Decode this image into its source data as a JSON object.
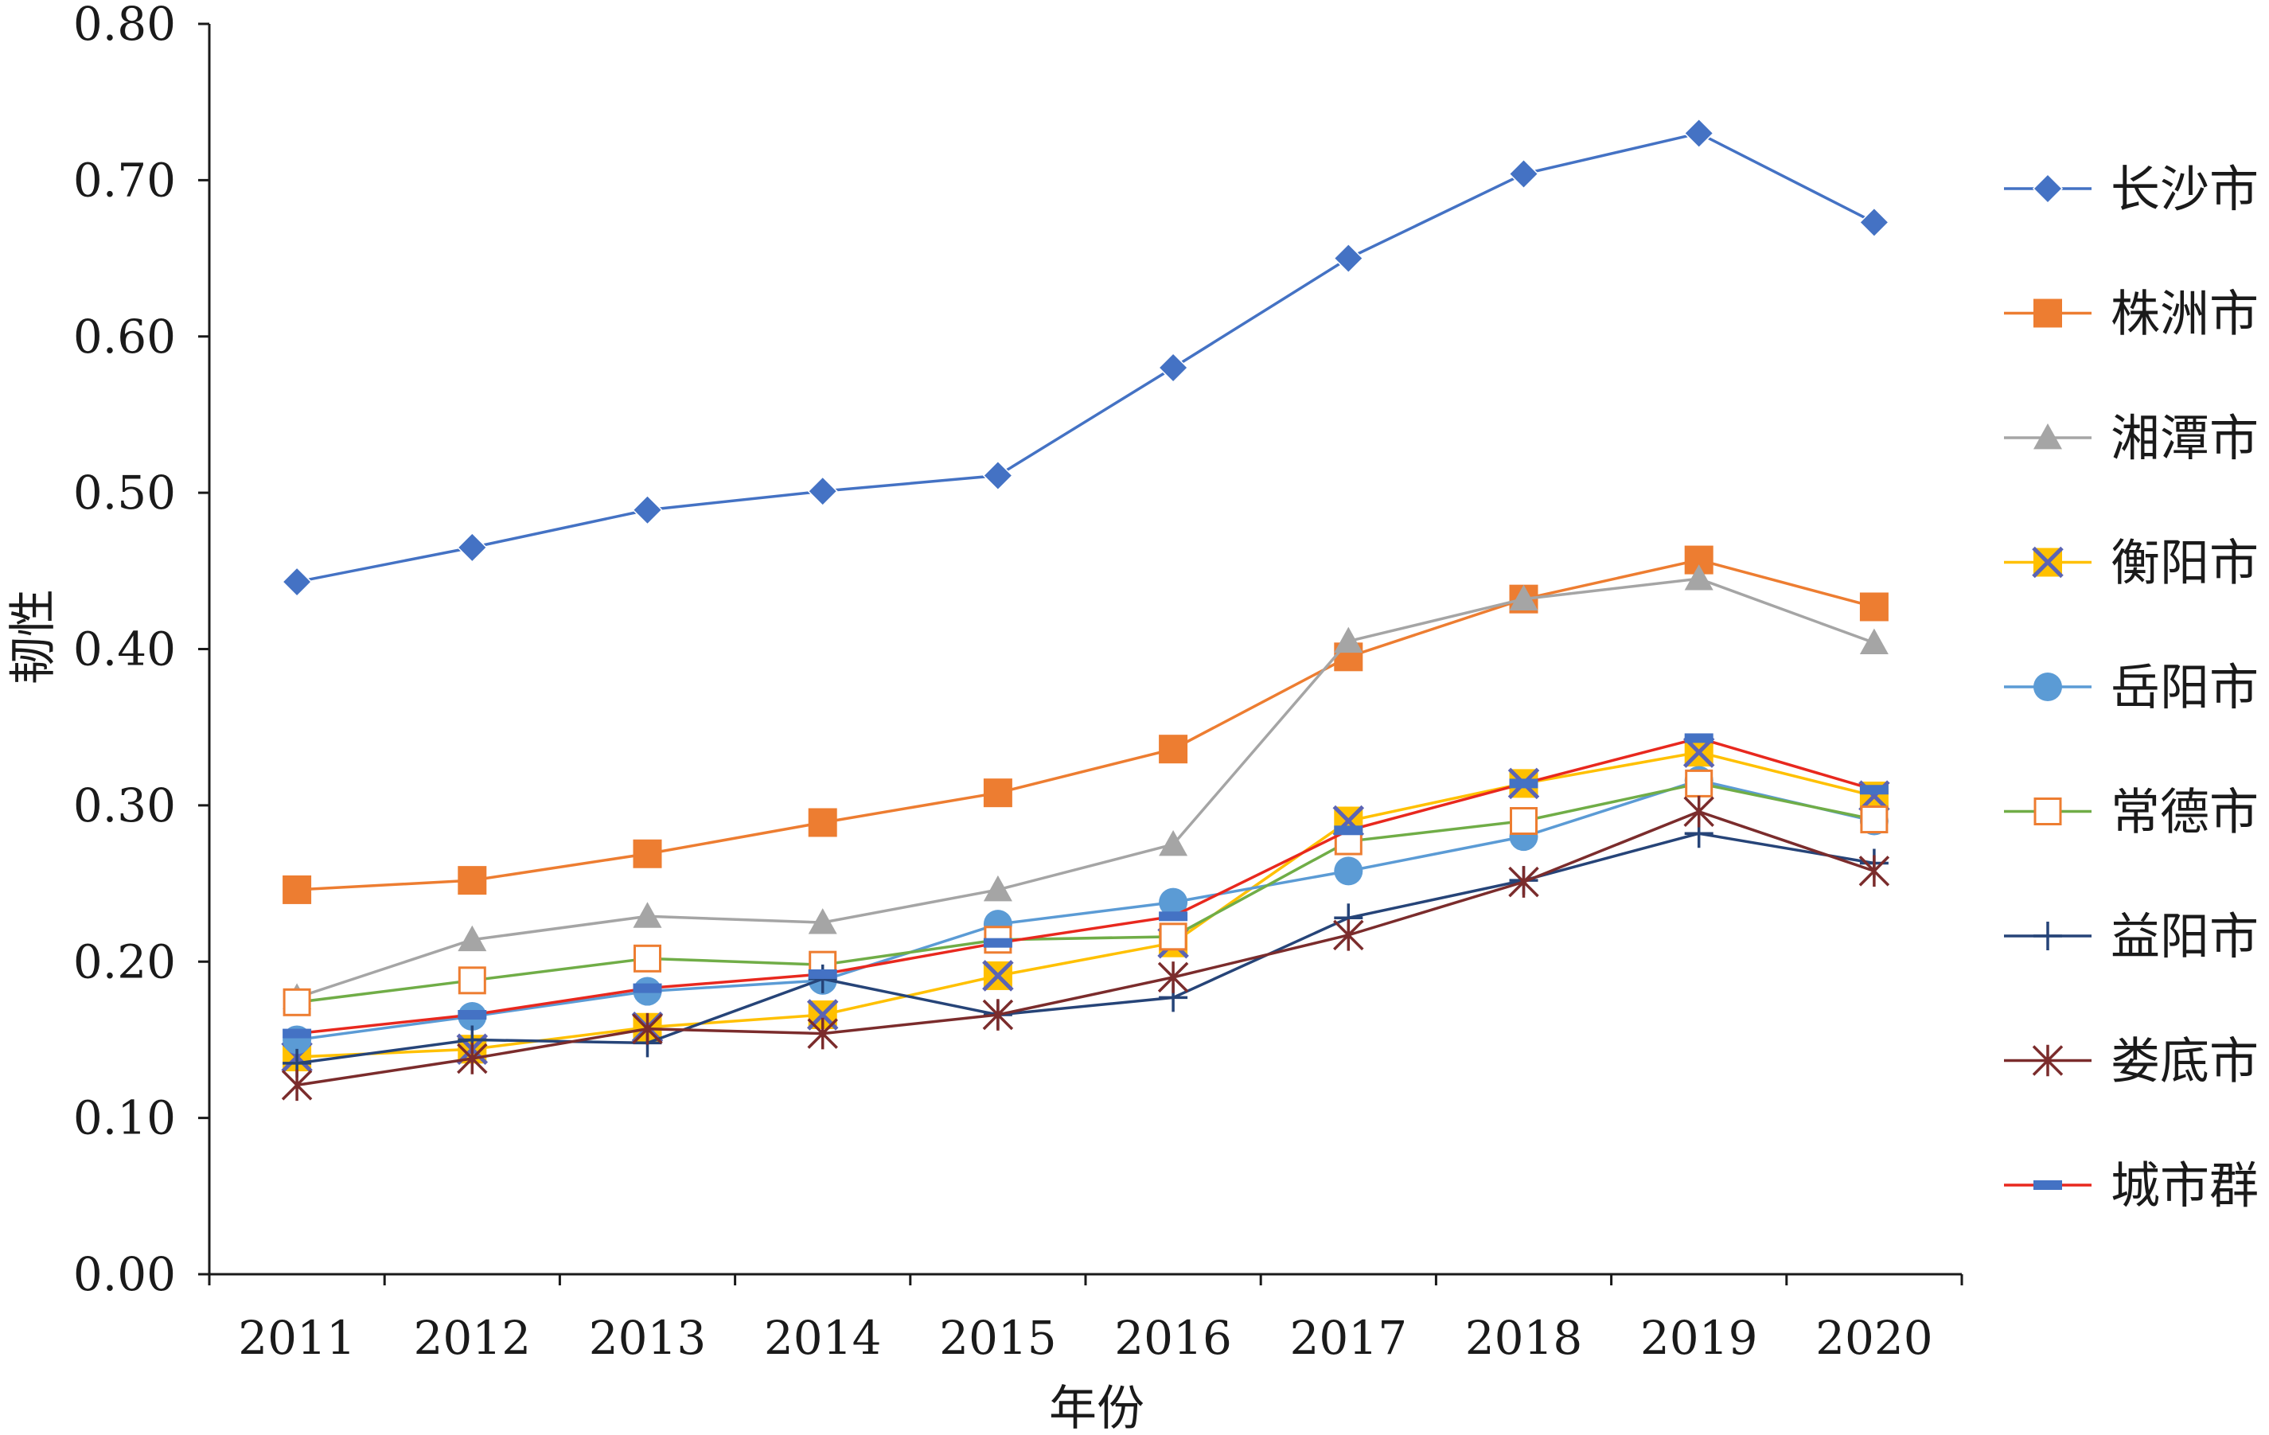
{
  "chart_data": {
    "type": "line",
    "xlabel": "年份",
    "ylabel": "韧性",
    "categories": [
      "2011",
      "2012",
      "2013",
      "2014",
      "2015",
      "2016",
      "2017",
      "2018",
      "2019",
      "2020"
    ],
    "ylim": [
      0,
      0.8
    ],
    "yticks": [
      "0.00",
      "0.10",
      "0.20",
      "0.30",
      "0.40",
      "0.50",
      "0.60",
      "0.70",
      "0.80"
    ],
    "grid": false,
    "legend_position": "right",
    "series": [
      {
        "name": "长沙市",
        "color": "#4472C4",
        "marker": "diamond",
        "values": [
          0.443,
          0.465,
          0.489,
          0.501,
          0.511,
          0.58,
          0.65,
          0.704,
          0.73,
          0.673
        ]
      },
      {
        "name": "株洲市",
        "color": "#ED7D31",
        "marker": "square",
        "values": [
          0.246,
          0.252,
          0.269,
          0.289,
          0.308,
          0.336,
          0.395,
          0.432,
          0.457,
          0.427
        ]
      },
      {
        "name": "湘潭市",
        "color": "#A5A5A5",
        "marker": "triangle",
        "values": [
          0.177,
          0.214,
          0.229,
          0.225,
          0.246,
          0.275,
          0.405,
          0.432,
          0.445,
          0.404
        ]
      },
      {
        "name": "衡阳市",
        "color": "#FFC000",
        "marker": "xsquare",
        "values": [
          0.139,
          0.144,
          0.158,
          0.166,
          0.191,
          0.212,
          0.29,
          0.314,
          0.334,
          0.306
        ]
      },
      {
        "name": "岳阳市",
        "color": "#5B9BD5",
        "marker": "circle",
        "values": [
          0.15,
          0.165,
          0.181,
          0.188,
          0.224,
          0.238,
          0.258,
          0.28,
          0.316,
          0.29
        ]
      },
      {
        "name": "常德市",
        "color": "#70AD47",
        "marker": "opensquare",
        "values": [
          0.174,
          0.188,
          0.202,
          0.198,
          0.214,
          0.216,
          0.277,
          0.29,
          0.314,
          0.291
        ]
      },
      {
        "name": "益阳市",
        "color": "#264478",
        "marker": "plus",
        "values": [
          0.135,
          0.15,
          0.148,
          0.189,
          0.166,
          0.177,
          0.228,
          0.252,
          0.282,
          0.263
        ]
      },
      {
        "name": "娄底市",
        "color": "#7B2C2C",
        "marker": "asterisk",
        "values": [
          0.121,
          0.138,
          0.157,
          0.154,
          0.166,
          0.19,
          0.217,
          0.251,
          0.296,
          0.258
        ]
      },
      {
        "name": "城市群",
        "color": "#E8281E",
        "marker": "dash",
        "values": [
          0.154,
          0.166,
          0.183,
          0.192,
          0.212,
          0.229,
          0.284,
          0.314,
          0.343,
          0.31
        ]
      }
    ]
  }
}
